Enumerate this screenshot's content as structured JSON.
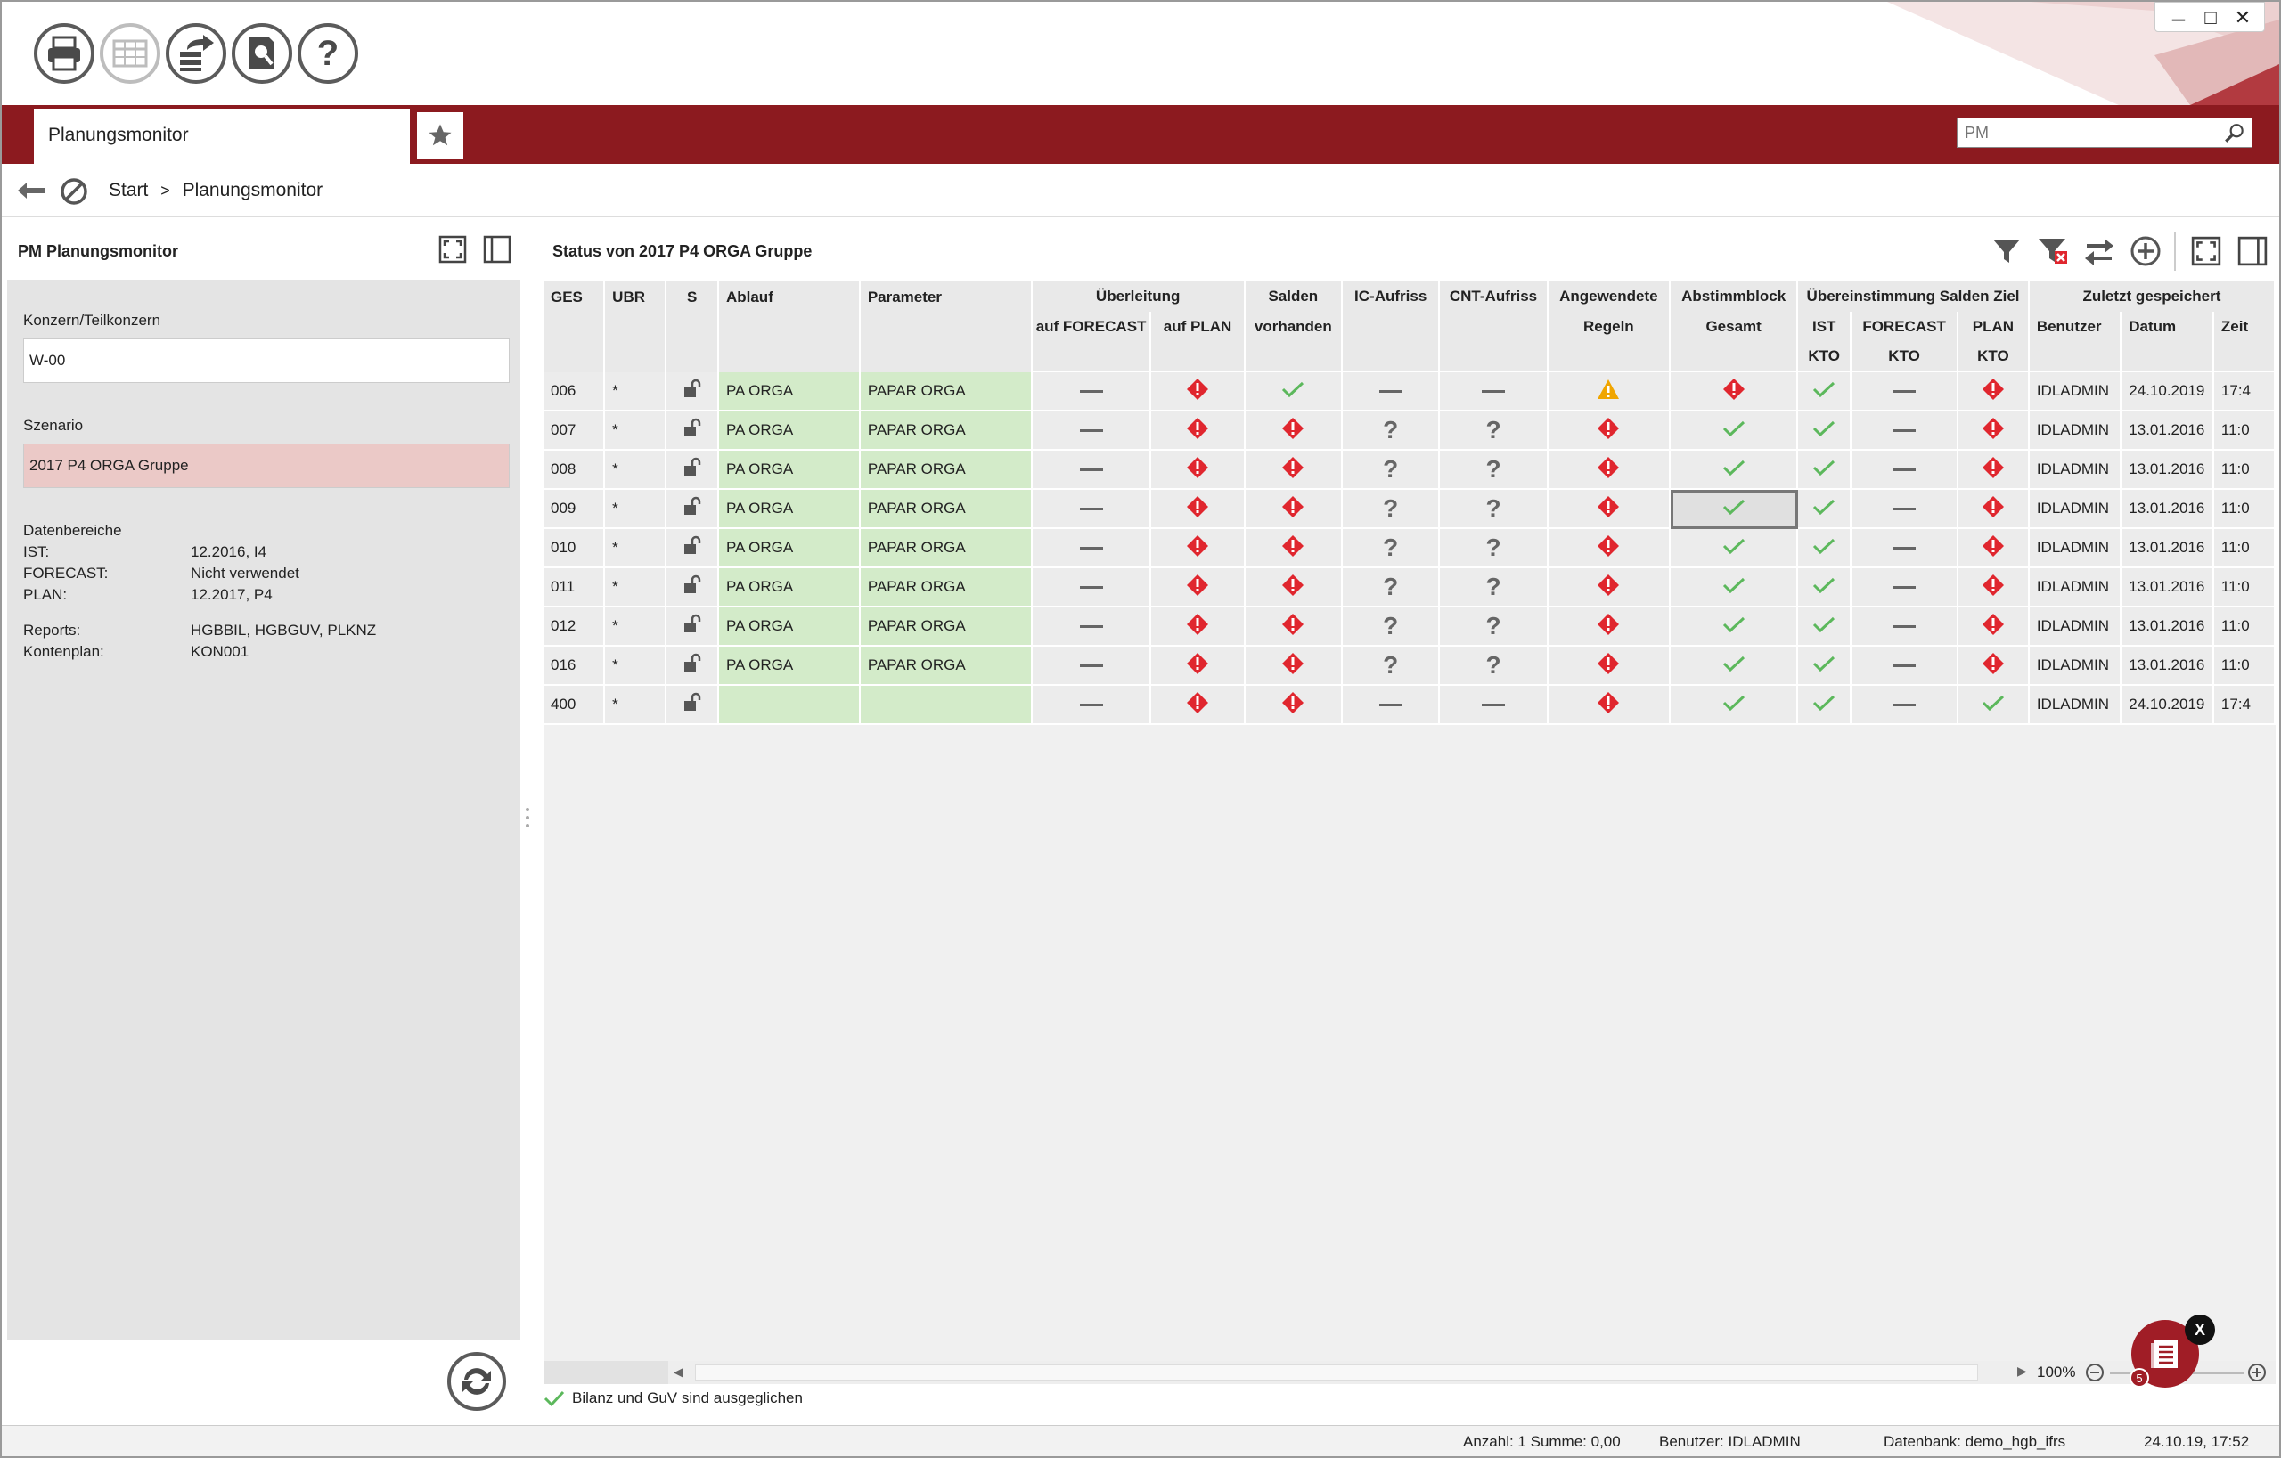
{
  "window": {
    "controls": [
      "–",
      "□",
      "✕"
    ]
  },
  "toolbar": {
    "buttons": [
      {
        "name": "print-icon",
        "enabled": true
      },
      {
        "name": "table-layout-icon",
        "enabled": false
      },
      {
        "name": "export-icon",
        "enabled": true
      },
      {
        "name": "search-document-icon",
        "enabled": true
      },
      {
        "name": "help-icon",
        "enabled": true,
        "label": "?"
      }
    ]
  },
  "tabbar": {
    "active_tab": "Planungsmonitor",
    "search_placeholder": "PM"
  },
  "breadcrumb": {
    "items": [
      "Start",
      "Planungsmonitor"
    ],
    "separator": ">"
  },
  "left_panel": {
    "title": "PM Planungsmonitor",
    "konzern_label": "Konzern/Teilkonzern",
    "konzern_value": "W-00",
    "szenario_label": "Szenario",
    "szenario_value": "2017 P4 ORGA Gruppe",
    "datenbereiche_label": "Datenbereiche",
    "ist_label": "IST:",
    "ist_value": "12.2016, I4",
    "forecast_label": "FORECAST:",
    "forecast_value": "Nicht verwendet",
    "plan_label": "PLAN:",
    "plan_value": "12.2017, P4",
    "reports_label": "Reports:",
    "reports_value": "HGBBIL, HGBGUV, PLKNZ",
    "kontenplan_label": "Kontenplan:",
    "kontenplan_value": "KON001"
  },
  "right_panel": {
    "title": "Status von 2017 P4 ORGA Gruppe",
    "status_line": "Bilanz und GuV sind ausgeglichen",
    "zoom": "100%"
  },
  "table": {
    "headers": {
      "ges": "GES",
      "ubr": "UBR",
      "s": "S",
      "ablauf": "Ablauf",
      "parameter": "Parameter",
      "ueberleitung": "Überleitung",
      "auf_forecast": "auf FORECAST",
      "auf_plan": "auf PLAN",
      "salden": "Salden",
      "vorhanden": "vorhanden",
      "ic_aufriss": "IC-Aufriss",
      "cnt_aufriss": "CNT-Aufriss",
      "angewendete": "Angewendete",
      "regeln": "Regeln",
      "abstimmblock": "Abstimmblock",
      "gesamt": "Gesamt",
      "uebereinstimmung": "Übereinstimmung Salden Ziel",
      "ist": "IST",
      "forecast": "FORECAST",
      "plan": "PLAN",
      "kto": "KTO",
      "zuletzt": "Zuletzt gespeichert",
      "benutzer": "Benutzer",
      "datum": "Datum",
      "zeit": "Zeit"
    },
    "rows": [
      {
        "ges": "006",
        "ubr": "*",
        "ablauf": "PA ORGA",
        "parameter": "PAPAR ORGA",
        "fc": "dash",
        "plan": "error",
        "salden": "ok",
        "ic": "dash",
        "cnt": "dash",
        "regeln": "warning",
        "gesamt": "error",
        "ist_kto": "ok",
        "fc_kto": "dash",
        "plan_kto": "error",
        "benutzer": "IDLADMIN",
        "datum": "24.10.2019",
        "zeit": "17:4"
      },
      {
        "ges": "007",
        "ubr": "*",
        "ablauf": "PA ORGA",
        "parameter": "PAPAR ORGA",
        "fc": "dash",
        "plan": "error",
        "salden": "error",
        "ic": "unknown",
        "cnt": "unknown",
        "regeln": "error",
        "gesamt": "ok",
        "ist_kto": "ok",
        "fc_kto": "dash",
        "plan_kto": "error",
        "benutzer": "IDLADMIN",
        "datum": "13.01.2016",
        "zeit": "11:0"
      },
      {
        "ges": "008",
        "ubr": "*",
        "ablauf": "PA ORGA",
        "parameter": "PAPAR ORGA",
        "fc": "dash",
        "plan": "error",
        "salden": "error",
        "ic": "unknown",
        "cnt": "unknown",
        "regeln": "error",
        "gesamt": "ok",
        "ist_kto": "ok",
        "fc_kto": "dash",
        "plan_kto": "error",
        "benutzer": "IDLADMIN",
        "datum": "13.01.2016",
        "zeit": "11:0"
      },
      {
        "ges": "009",
        "ubr": "*",
        "ablauf": "PA ORGA",
        "parameter": "PAPAR ORGA",
        "fc": "dash",
        "plan": "error",
        "salden": "error",
        "ic": "unknown",
        "cnt": "unknown",
        "regeln": "error",
        "gesamt": "ok",
        "ist_kto": "ok",
        "fc_kto": "dash",
        "plan_kto": "error",
        "benutzer": "IDLADMIN",
        "datum": "13.01.2016",
        "zeit": "11:0",
        "selected": true
      },
      {
        "ges": "010",
        "ubr": "*",
        "ablauf": "PA ORGA",
        "parameter": "PAPAR ORGA",
        "fc": "dash",
        "plan": "error",
        "salden": "error",
        "ic": "unknown",
        "cnt": "unknown",
        "regeln": "error",
        "gesamt": "ok",
        "ist_kto": "ok",
        "fc_kto": "dash",
        "plan_kto": "error",
        "benutzer": "IDLADMIN",
        "datum": "13.01.2016",
        "zeit": "11:0"
      },
      {
        "ges": "011",
        "ubr": "*",
        "ablauf": "PA ORGA",
        "parameter": "PAPAR ORGA",
        "fc": "dash",
        "plan": "error",
        "salden": "error",
        "ic": "unknown",
        "cnt": "unknown",
        "regeln": "error",
        "gesamt": "ok",
        "ist_kto": "ok",
        "fc_kto": "dash",
        "plan_kto": "error",
        "benutzer": "IDLADMIN",
        "datum": "13.01.2016",
        "zeit": "11:0"
      },
      {
        "ges": "012",
        "ubr": "*",
        "ablauf": "PA ORGA",
        "parameter": "PAPAR ORGA",
        "fc": "dash",
        "plan": "error",
        "salden": "error",
        "ic": "unknown",
        "cnt": "unknown",
        "regeln": "error",
        "gesamt": "ok",
        "ist_kto": "ok",
        "fc_kto": "dash",
        "plan_kto": "error",
        "benutzer": "IDLADMIN",
        "datum": "13.01.2016",
        "zeit": "11:0"
      },
      {
        "ges": "016",
        "ubr": "*",
        "ablauf": "PA ORGA",
        "parameter": "PAPAR ORGA",
        "fc": "dash",
        "plan": "error",
        "salden": "error",
        "ic": "unknown",
        "cnt": "unknown",
        "regeln": "error",
        "gesamt": "ok",
        "ist_kto": "ok",
        "fc_kto": "dash",
        "plan_kto": "error",
        "benutzer": "IDLADMIN",
        "datum": "13.01.2016",
        "zeit": "11:0"
      },
      {
        "ges": "400",
        "ubr": "*",
        "ablauf": "",
        "parameter": "",
        "fc": "dash",
        "plan": "error",
        "salden": "error",
        "ic": "dash",
        "cnt": "dash",
        "regeln": "error",
        "gesamt": "ok",
        "ist_kto": "ok",
        "fc_kto": "dash",
        "plan_kto": "ok",
        "benutzer": "IDLADMIN",
        "datum": "24.10.2019",
        "zeit": "17:4"
      }
    ]
  },
  "statusbar": {
    "anzahl": "Anzahl: 1 Summe: 0,00",
    "benutzer": "Benutzer: IDLADMIN",
    "datenbank": "Datenbank: demo_hgb_ifrs",
    "datetime": "24.10.19, 17:52"
  },
  "fab": {
    "badge": "5",
    "close": "X"
  },
  "colors": {
    "brand": "#8c1a1f",
    "ok": "#5cb85c",
    "error": "#e0262e",
    "warning": "#f0a500",
    "green_cell": "#d3ebc9",
    "pink_field": "#ebc9c7"
  }
}
